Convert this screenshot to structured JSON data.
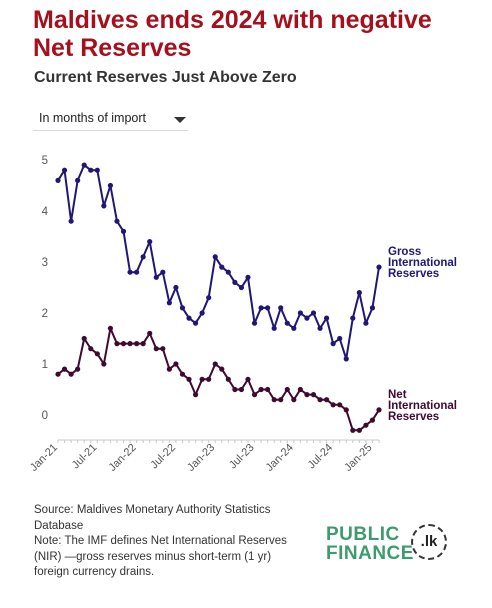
{
  "header": {
    "title": "Maldives ends 2024 with negative Net Reserves",
    "subtitle": "Current Reserves Just Above Zero"
  },
  "controls": {
    "unit_selected": "In months of import"
  },
  "footer": {
    "source": "Source: Maldives Monetary Authority Statistics Database",
    "note": "Note: The IMF defines Net International Reserves (NIR) —gross reserves minus short-term (1 yr) foreign currency drains."
  },
  "logo": {
    "line1": "PUBLIC",
    "line2": "FINANCE",
    "badge": ".lk"
  },
  "colors": {
    "title": "#a5101d",
    "gross": "#1f1675",
    "net": "#3f0a30",
    "logo_green": "#3d9b6e"
  },
  "chart_data": {
    "type": "line",
    "title": "",
    "xlabel": "",
    "ylabel": "",
    "ylim": [
      0,
      5
    ],
    "yticks": [
      0,
      1,
      2,
      3,
      4,
      5
    ],
    "xticks": [
      "Jan-21",
      "Jul-21",
      "Jan-22",
      "Jul-22",
      "Jan-23",
      "Jul-23",
      "Jan-24",
      "Jul-24",
      "Jan-25"
    ],
    "x": [
      "Jan-21",
      "Feb-21",
      "Mar-21",
      "Apr-21",
      "May-21",
      "Jun-21",
      "Jul-21",
      "Aug-21",
      "Sep-21",
      "Oct-21",
      "Nov-21",
      "Dec-21",
      "Jan-22",
      "Feb-22",
      "Mar-22",
      "Apr-22",
      "May-22",
      "Jun-22",
      "Jul-22",
      "Aug-22",
      "Sep-22",
      "Oct-22",
      "Nov-22",
      "Dec-22",
      "Jan-23",
      "Feb-23",
      "Mar-23",
      "Apr-23",
      "May-23",
      "Jun-23",
      "Jul-23",
      "Aug-23",
      "Sep-23",
      "Oct-23",
      "Nov-23",
      "Dec-23",
      "Jan-24",
      "Feb-24",
      "Mar-24",
      "Apr-24",
      "May-24",
      "Jun-24",
      "Jul-24",
      "Aug-24",
      "Sep-24",
      "Oct-24",
      "Nov-24",
      "Dec-24"
    ],
    "grid": false,
    "legend": "end-of-line labels",
    "series": [
      {
        "name": "Gross International Reserves",
        "color": "#1f1675",
        "values": [
          4.6,
          4.8,
          3.8,
          4.6,
          4.9,
          4.8,
          4.8,
          4.1,
          4.5,
          3.8,
          3.6,
          2.8,
          2.8,
          3.1,
          3.4,
          2.7,
          2.8,
          2.2,
          2.5,
          2.1,
          1.9,
          1.8,
          2.0,
          2.3,
          3.1,
          2.9,
          2.8,
          2.6,
          2.5,
          2.7,
          1.8,
          2.1,
          2.1,
          1.7,
          2.1,
          1.8,
          1.7,
          2.0,
          1.9,
          2.0,
          1.7,
          1.9,
          1.4,
          1.5,
          1.1,
          1.9,
          2.4,
          1.8
        ]
      },
      {
        "name": "Net International Reserves",
        "color": "#3f0a30",
        "values": [
          0.8,
          0.9,
          0.8,
          0.9,
          1.5,
          1.3,
          1.2,
          1.0,
          1.7,
          1.4,
          1.4,
          1.4,
          1.4,
          1.4,
          1.6,
          1.3,
          1.3,
          0.9,
          1.0,
          0.8,
          0.7,
          0.4,
          0.7,
          0.7,
          1.0,
          0.9,
          0.7,
          0.5,
          0.5,
          0.7,
          0.4,
          0.5,
          0.5,
          0.3,
          0.3,
          0.5,
          0.3,
          0.5,
          0.4,
          0.4,
          0.3,
          0.3,
          0.2,
          0.2,
          0.1,
          -0.3,
          -0.3,
          -0.2
        ]
      }
    ],
    "end_values": [
      2.1,
      2.9,
      -0.1,
      0.1
    ]
  }
}
